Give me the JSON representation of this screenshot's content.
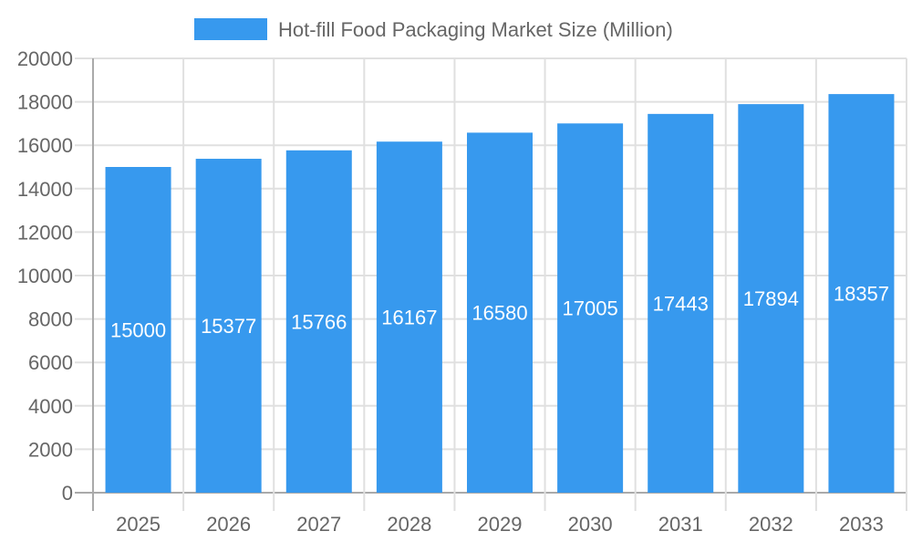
{
  "chart_data": {
    "type": "bar",
    "title": "",
    "xlabel": "",
    "ylabel": "",
    "categories": [
      "2025",
      "2026",
      "2027",
      "2028",
      "2029",
      "2030",
      "2031",
      "2032",
      "2033"
    ],
    "series": [
      {
        "name": "Hot-fill Food Packaging Market Size (Million)",
        "values": [
          15000,
          15377,
          15766,
          16167,
          16580,
          17005,
          17443,
          17894,
          18357
        ],
        "color": "#3799ee"
      }
    ],
    "ylim": [
      0,
      20000
    ],
    "yticks": [
      0,
      2000,
      4000,
      6000,
      8000,
      10000,
      12000,
      14000,
      16000,
      18000,
      20000
    ],
    "grid": true,
    "legend": "top",
    "data_labels": true
  }
}
